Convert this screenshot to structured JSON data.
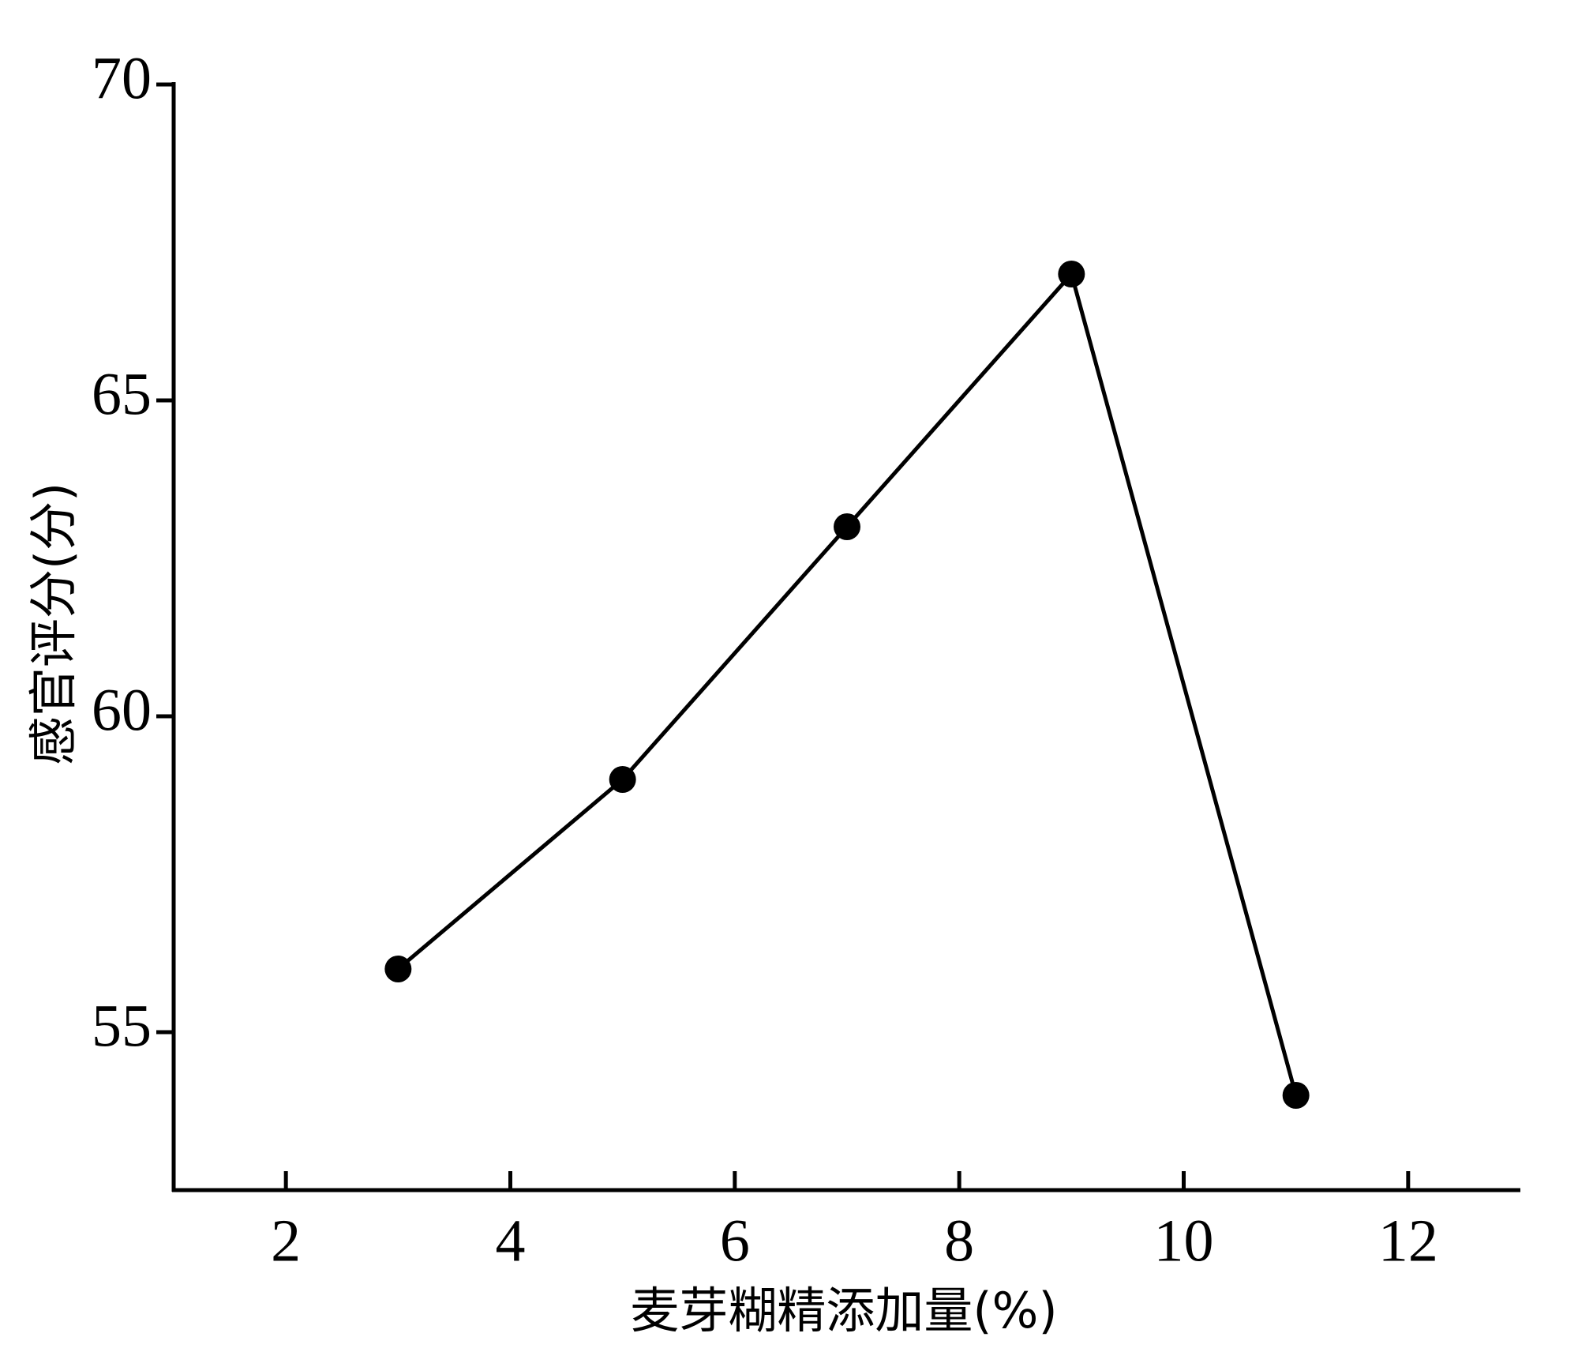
{
  "chart_data": {
    "type": "line",
    "x_label": "麦芽糊精添加量(%)",
    "y_label": "感官评分(分)",
    "x": [
      3,
      5,
      7,
      9,
      11
    ],
    "values": [
      56,
      59,
      63,
      67,
      54
    ],
    "color": "#000000",
    "xlim": [
      1,
      13
    ],
    "xticks": [
      2,
      4,
      6,
      8,
      10,
      12
    ],
    "ylim": [
      52.5,
      70
    ],
    "yticks": [
      55,
      60,
      65,
      70
    ]
  }
}
